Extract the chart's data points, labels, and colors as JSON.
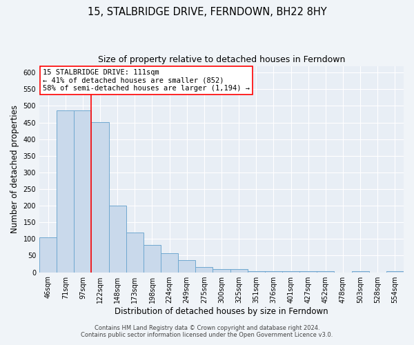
{
  "title": "15, STALBRIDGE DRIVE, FERNDOWN, BH22 8HY",
  "subtitle": "Size of property relative to detached houses in Ferndown",
  "xlabel": "Distribution of detached houses by size in Ferndown",
  "ylabel": "Number of detached properties",
  "categories": [
    "46sqm",
    "71sqm",
    "97sqm",
    "122sqm",
    "148sqm",
    "173sqm",
    "198sqm",
    "224sqm",
    "249sqm",
    "275sqm",
    "300sqm",
    "325sqm",
    "351sqm",
    "376sqm",
    "401sqm",
    "427sqm",
    "452sqm",
    "478sqm",
    "503sqm",
    "528sqm",
    "554sqm"
  ],
  "values": [
    105,
    487,
    487,
    452,
    200,
    120,
    82,
    57,
    37,
    16,
    10,
    10,
    3,
    3,
    3,
    3,
    3,
    0,
    3,
    0,
    3
  ],
  "bar_color": "#c9d9eb",
  "bar_edge_color": "#6fa8d0",
  "ylim": [
    0,
    620
  ],
  "yticks": [
    0,
    50,
    100,
    150,
    200,
    250,
    300,
    350,
    400,
    450,
    500,
    550,
    600
  ],
  "annotation_box_text": "15 STALBRIDGE DRIVE: 111sqm\n← 41% of detached houses are smaller (852)\n58% of semi-detached houses are larger (1,194) →",
  "footer_line1": "Contains HM Land Registry data © Crown copyright and database right 2024.",
  "footer_line2": "Contains public sector information licensed under the Open Government Licence v3.0.",
  "fig_bg_color": "#f0f4f8",
  "plot_bg_color": "#e8eef5",
  "grid_color": "#ffffff",
  "title_fontsize": 10.5,
  "subtitle_fontsize": 9,
  "label_fontsize": 8.5,
  "tick_fontsize": 7,
  "ann_fontsize": 7.5,
  "footer_fontsize": 6
}
